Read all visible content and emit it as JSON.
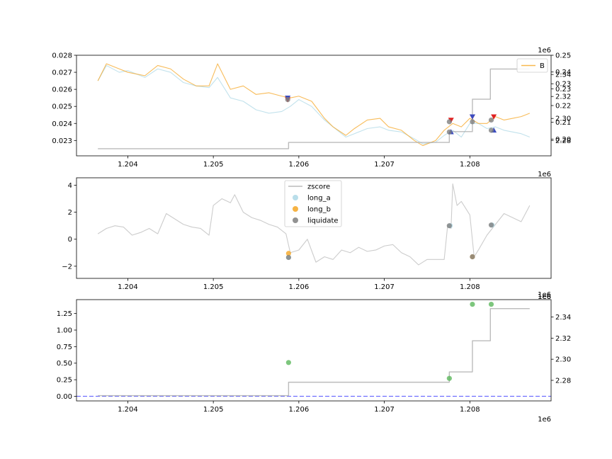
{
  "chart_data": [
    {
      "type": "line",
      "xlim": [
        1203400,
        1208950
      ],
      "x_ticks": [
        1204000,
        1205000,
        1206000,
        1207000,
        1208000
      ],
      "x_tick_labels": [
        "1.204",
        "1.205",
        "1.206",
        "1.207",
        "1.208"
      ],
      "x_offset_label": "1e6",
      "ylim": [
        0.0221,
        0.028
      ],
      "y_ticks": [
        0.023,
        0.024,
        0.025,
        0.026,
        0.027,
        0.028
      ],
      "y_tick_labels": [
        "0.023",
        "0.024",
        "0.025",
        "0.026",
        "0.027",
        "0.028"
      ],
      "legend": {
        "placement": "top-right",
        "entries": [
          {
            "label": "B",
            "color": "#f5a623"
          }
        ]
      },
      "series": [
        {
          "color": "#add8e6",
          "x": [
            1203650,
            1203750,
            1203900,
            1204000,
            1204200,
            1204350,
            1204500,
            1204650,
            1204800,
            1204950,
            1205050,
            1205200,
            1205350,
            1205500,
            1205650,
            1205800,
            1205900,
            1206000,
            1206150,
            1206300,
            1206400,
            1206550,
            1206650,
            1206800,
            1206950,
            1207050,
            1207200,
            1207350,
            1207450,
            1207600,
            1207700,
            1207800,
            1207900,
            1208000,
            1208100,
            1208200,
            1208300,
            1208400,
            1208500,
            1208600,
            1208700
          ],
          "values": [
            0.0265,
            0.0274,
            0.027,
            0.0271,
            0.0267,
            0.0272,
            0.027,
            0.0264,
            0.0262,
            0.0261,
            0.0267,
            0.0255,
            0.0253,
            0.0248,
            0.0246,
            0.0247,
            0.025,
            0.0254,
            0.025,
            0.0242,
            0.0238,
            0.0232,
            0.0234,
            0.0237,
            0.0238,
            0.0236,
            0.0235,
            0.0231,
            0.0228,
            0.0229,
            0.0233,
            0.0236,
            0.0232,
            0.024,
            0.024,
            0.0237,
            0.0238,
            0.0236,
            0.0235,
            0.0234,
            0.0232
          ]
        },
        {
          "color": "#f5a623",
          "x": [
            1203650,
            1203750,
            1203900,
            1204000,
            1204200,
            1204350,
            1204500,
            1204650,
            1204800,
            1204950,
            1205050,
            1205200,
            1205350,
            1205500,
            1205650,
            1205800,
            1205900,
            1206000,
            1206150,
            1206300,
            1206400,
            1206550,
            1206650,
            1206800,
            1206950,
            1207050,
            1207200,
            1207350,
            1207450,
            1207600,
            1207700,
            1207800,
            1207900,
            1208000,
            1208100,
            1208200,
            1208300,
            1208400,
            1208500,
            1208600,
            1208700
          ],
          "values": [
            0.0265,
            0.0275,
            0.0272,
            0.027,
            0.0268,
            0.0274,
            0.0272,
            0.0266,
            0.0262,
            0.0262,
            0.0275,
            0.026,
            0.0262,
            0.0257,
            0.0258,
            0.0256,
            0.0255,
            0.0256,
            0.0253,
            0.0243,
            0.0238,
            0.0233,
            0.0237,
            0.0242,
            0.0243,
            0.0238,
            0.0236,
            0.023,
            0.0227,
            0.023,
            0.0236,
            0.024,
            0.0238,
            0.0243,
            0.024,
            0.024,
            0.0244,
            0.0242,
            0.0243,
            0.0244,
            0.0246
          ]
        },
        {
          "color": "#aaaaaa",
          "axis": "right",
          "step": true,
          "x": [
            1203650,
            1205880,
            1207760,
            1208030,
            1208240,
            1208700
          ],
          "values": [
            2.2725,
            2.2782,
            2.288,
            2.3175,
            2.345,
            2.345
          ]
        }
      ],
      "markers": [
        {
          "shape": "triangle-down",
          "color": "#e02020",
          "x": [
            1205870,
            1207780,
            1208030,
            1208280
          ],
          "values": [
            0.0254,
            0.0242,
            0.0244,
            0.0244
          ]
        },
        {
          "shape": "triangle-down",
          "color": "#3b4cc0",
          "x": [
            1205870,
            1208030
          ],
          "values": [
            0.0255,
            0.0244
          ]
        },
        {
          "shape": "triangle-up",
          "color": "#3b4cc0",
          "x": [
            1207780,
            1208280
          ],
          "values": [
            0.0235,
            0.0236
          ]
        },
        {
          "shape": "circle",
          "color": "#7f7f7f",
          "x": [
            1205870,
            1207760,
            1208030,
            1208250
          ],
          "values": [
            0.0254,
            0.0241,
            0.0241,
            0.0242
          ]
        },
        {
          "shape": "circle",
          "color": "#7f7f7f",
          "x": [
            1207760,
            1208250
          ],
          "values": [
            0.0235,
            0.0236
          ]
        }
      ],
      "right_axis": {
        "offset_label": "1e6",
        "ylim": [
          2.266,
          2.3575
        ],
        "ticks": [
          2.28,
          2.3,
          2.32,
          2.34
        ],
        "tick_labels": [
          "2.28",
          "2.30",
          "2.32",
          "2.34"
        ]
      },
      "right_axis_2": {
        "ylim": [
          0.19,
          0.25
        ],
        "ticks": [
          0.2,
          0.21,
          0.22,
          0.23,
          0.233,
          0.24,
          0.25
        ],
        "tick_labels": [
          "0.20",
          "0.21",
          "0.22",
          "0.23",
          "0.23",
          "0.24",
          "0.25"
        ]
      }
    },
    {
      "type": "line",
      "xlim": [
        1203400,
        1208950
      ],
      "x_ticks": [
        1204000,
        1205000,
        1206000,
        1207000,
        1208000
      ],
      "x_tick_labels": [
        "1.204",
        "1.205",
        "1.206",
        "1.207",
        "1.208"
      ],
      "x_offset_label": "1e6",
      "ylim": [
        -2.9,
        4.55
      ],
      "y_ticks": [
        -2,
        0,
        2,
        4
      ],
      "y_tick_labels": [
        "−2",
        "0",
        "2",
        "4"
      ],
      "legend": {
        "placement": "top-center",
        "entries": [
          {
            "label": "zscore",
            "kind": "line",
            "color": "#bbbbbb"
          },
          {
            "label": "long_a",
            "kind": "dot",
            "color": "#add8e6"
          },
          {
            "label": "long_b",
            "kind": "dot",
            "color": "#f5a623"
          },
          {
            "label": "liquidate",
            "kind": "dot",
            "color": "#7f7f7f"
          }
        ]
      },
      "series": [
        {
          "name": "zscore",
          "color": "#bbbbbb",
          "x": [
            1203650,
            1203750,
            1203850,
            1203950,
            1204050,
            1204150,
            1204250,
            1204350,
            1204450,
            1204550,
            1204650,
            1204750,
            1204850,
            1204950,
            1205000,
            1205100,
            1205200,
            1205250,
            1205350,
            1205450,
            1205550,
            1205650,
            1205750,
            1205850,
            1205900,
            1206000,
            1206100,
            1206200,
            1206300,
            1206400,
            1206500,
            1206600,
            1206700,
            1206800,
            1206900,
            1207000,
            1207100,
            1207200,
            1207300,
            1207400,
            1207500,
            1207600,
            1207700,
            1207740,
            1207780,
            1207800,
            1207850,
            1207900,
            1208000,
            1208050,
            1208100,
            1208200,
            1208300,
            1208400,
            1208500,
            1208600,
            1208700
          ],
          "values": [
            0.4,
            0.8,
            1.0,
            0.9,
            0.3,
            0.5,
            0.8,
            0.4,
            1.9,
            1.5,
            1.1,
            0.9,
            0.8,
            0.3,
            2.5,
            3.0,
            2.7,
            3.3,
            2.0,
            1.6,
            1.4,
            1.1,
            0.9,
            0.4,
            -1.0,
            -0.8,
            0.0,
            -1.7,
            -1.3,
            -1.5,
            -0.8,
            -1.0,
            -0.6,
            -0.9,
            -0.8,
            -0.5,
            -0.4,
            -1.0,
            -1.3,
            -1.9,
            -1.5,
            -1.5,
            -1.5,
            1.0,
            0.8,
            4.1,
            2.5,
            2.8,
            1.8,
            -1.3,
            -0.8,
            0.3,
            1.1,
            1.9,
            1.6,
            1.3,
            2.5
          ]
        }
      ],
      "markers": [
        {
          "label": "long_a",
          "color": "#add8e6",
          "x": [
            1205880,
            1207770,
            1208260
          ],
          "values": [
            -1.35,
            1.0,
            1.05
          ]
        },
        {
          "label": "long_b",
          "color": "#f5a623",
          "x": [
            1205880,
            1208030
          ],
          "values": [
            -1.05,
            -1.3
          ]
        },
        {
          "label": "liquidate",
          "color": "#7f7f7f",
          "x": [
            1205880,
            1207760,
            1208030,
            1208250
          ],
          "values": [
            -1.35,
            1.0,
            -1.3,
            1.05
          ]
        }
      ]
    },
    {
      "type": "line",
      "xlim": [
        1203400,
        1208950
      ],
      "x_ticks": [
        1204000,
        1205000,
        1206000,
        1207000,
        1208000
      ],
      "x_tick_labels": [
        "1.204",
        "1.205",
        "1.206",
        "1.207",
        "1.208"
      ],
      "x_offset_label": "1e6",
      "ylim": [
        -0.07,
        1.46
      ],
      "y_ticks": [
        0.0,
        0.25,
        0.5,
        0.75,
        1.0,
        1.25
      ],
      "y_tick_labels": [
        "0.00",
        "0.25",
        "0.50",
        "0.75",
        "1.00",
        "1.25"
      ],
      "hline": {
        "value": 0.0,
        "color": "#6666ff",
        "style": "dashed"
      },
      "series": [
        {
          "color": "#aaaaaa",
          "axis": "right",
          "step": true,
          "x": [
            1203650,
            1205880,
            1207760,
            1208030,
            1208240,
            1208700
          ],
          "values": [
            2.2655,
            2.2782,
            2.288,
            2.3175,
            2.348,
            2.348
          ]
        }
      ],
      "markers": [
        {
          "shape": "circle",
          "color": "#5cb85c",
          "x": [
            1205880,
            1207760,
            1208030,
            1208250
          ],
          "values": [
            0.51,
            0.27,
            1.39,
            1.39
          ]
        }
      ],
      "right_axis": {
        "offset_label": "1e6",
        "offset_label_2": "1e6",
        "ylim": [
          2.2605,
          2.3565
        ],
        "ticks": [
          2.28,
          2.3,
          2.32,
          2.34
        ],
        "tick_labels": [
          "2.28",
          "2.30",
          "2.32",
          "2.34"
        ]
      }
    }
  ]
}
